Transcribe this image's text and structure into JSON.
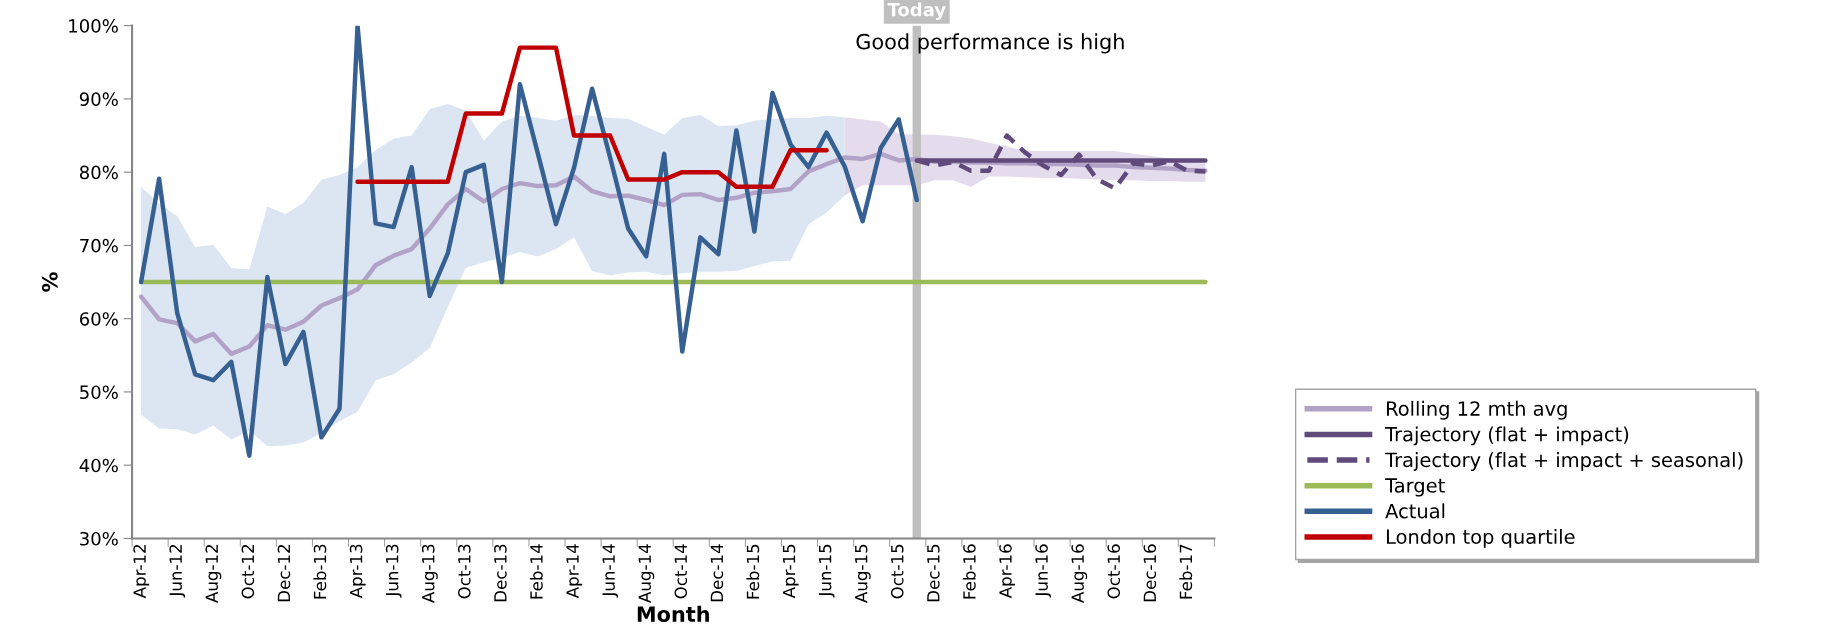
{
  "chart_data": {
    "type": "line",
    "xlabel": "Month",
    "ylabel": "%",
    "categories": [
      "Apr-12",
      null,
      "Jun-12",
      null,
      "Aug-12",
      null,
      "Oct-12",
      null,
      "Dec-12",
      null,
      "Feb-13",
      null,
      "Apr-13",
      null,
      "Jun-13",
      null,
      "Aug-13",
      null,
      "Oct-13",
      null,
      "Dec-13",
      null,
      "Feb-14",
      null,
      "Apr-14",
      null,
      "Jun-14",
      null,
      "Aug-14",
      null,
      "Oct-14",
      null,
      "Dec-14",
      null,
      "Feb-15",
      null,
      "Apr-15",
      null,
      "Jun-15",
      null,
      "Aug-15",
      null,
      "Oct-15",
      null,
      "Dec-15",
      null,
      "Feb-16",
      null,
      "Apr-16",
      null,
      "Jun-16",
      null,
      "Aug-16",
      null,
      "Oct-16",
      null,
      "Dec-16",
      null,
      "Feb-17",
      null
    ],
    "ylim": [
      30,
      100
    ],
    "yticks": [
      {
        "value": 30,
        "label": "30%"
      },
      {
        "value": 40,
        "label": "40%"
      },
      {
        "value": 50,
        "label": "50%"
      },
      {
        "value": 60,
        "label": "60%"
      },
      {
        "value": 70,
        "label": "70%"
      },
      {
        "value": 80,
        "label": "80%"
      },
      {
        "value": 90,
        "label": "90%"
      },
      {
        "value": 100,
        "label": "100%"
      }
    ],
    "legend": "right",
    "annotations": [
      "Today",
      "Good performance is high"
    ],
    "series": [
      {
        "name": "Rolling 12 mth avg",
        "color": "#b3a2c7",
        "line_style": "solid",
        "values": [
          63.0,
          59.9,
          59.4,
          56.9,
          57.9,
          55.2,
          56.2,
          59.1,
          58.5,
          59.6,
          61.8,
          62.8,
          64.0,
          67.3,
          68.6,
          69.5,
          72.3,
          75.6,
          77.7,
          76.0,
          77.7,
          78.5,
          78.1,
          78.2,
          79.4,
          77.4,
          76.7,
          76.8,
          76.2,
          75.5,
          76.9,
          77.0,
          76.2,
          76.5,
          77.2,
          77.4,
          77.7,
          80.1,
          81.1,
          82.0,
          81.8,
          82.5,
          81.6,
          81.8,
          81.4,
          81.4,
          81.3,
          81.3,
          81.2,
          81.2,
          81.1,
          81.1,
          81.0,
          80.9,
          80.9,
          80.7,
          80.6,
          80.5,
          80.3,
          80.2
        ]
      },
      {
        "color": "#dce6f2",
        "values": [
          null,
          null,
          null,
          null,
          null,
          null,
          null,
          null,
          null,
          null,
          null,
          null,
          null,
          null,
          null,
          null,
          null,
          null,
          null,
          null,
          null,
          null,
          null,
          null,
          null,
          null,
          null,
          null,
          null,
          null,
          null,
          null,
          null,
          null,
          null,
          null,
          null,
          null,
          null,
          null,
          null,
          null,
          null,
          null,
          null,
          null,
          null,
          null,
          null,
          null,
          null,
          null,
          null,
          null,
          null,
          null,
          null,
          null,
          null,
          null
        ],
        "upper": [
          78.0,
          75.7,
          74.0,
          69.8,
          70.1,
          66.9,
          66.7,
          75.3,
          74.3,
          75.8,
          79.0,
          79.6,
          80.7,
          83.0,
          84.6,
          85.0,
          88.6,
          89.3,
          88.4,
          84.3,
          86.9,
          87.7,
          87.4,
          87.0,
          87.8,
          87.7,
          87.4,
          87.3,
          86.2,
          85.1,
          87.4,
          87.8,
          86.3,
          86.4,
          87.0,
          87.3,
          87.4,
          87.4,
          87.7,
          87.5,
          null,
          null,
          null,
          null,
          null,
          null,
          null,
          null,
          null,
          null,
          null,
          null,
          null,
          null,
          null,
          null,
          null,
          null,
          null,
          null
        ],
        "lower": [
          46.9,
          45.0,
          44.9,
          44.2,
          45.4,
          43.5,
          44.7,
          42.6,
          42.7,
          43.1,
          44.4,
          46.0,
          47.3,
          51.6,
          52.4,
          54.0,
          56.0,
          61.6,
          66.9,
          67.7,
          68.3,
          69.1,
          68.5,
          69.5,
          71.1,
          66.5,
          65.9,
          66.3,
          66.4,
          65.9,
          66.2,
          66.4,
          66.4,
          66.5,
          67.2,
          67.8,
          67.9,
          72.9,
          74.5,
          76.8,
          null,
          null,
          null,
          null,
          null,
          null,
          null,
          null,
          null,
          null,
          null,
          null,
          null,
          null,
          null,
          null,
          null,
          null,
          null,
          null
        ]
      },
      {
        "name": "Trajectory (flat + impact)",
        "color": "#604a7b",
        "line_style": "solid",
        "values": [
          null,
          null,
          null,
          null,
          null,
          null,
          null,
          null,
          null,
          null,
          null,
          null,
          null,
          null,
          null,
          null,
          null,
          null,
          null,
          null,
          null,
          null,
          null,
          null,
          null,
          null,
          null,
          null,
          null,
          null,
          null,
          null,
          null,
          null,
          null,
          null,
          null,
          null,
          null,
          null,
          null,
          null,
          null,
          81.6,
          81.6,
          81.6,
          81.6,
          81.6,
          81.6,
          81.6,
          81.6,
          81.6,
          81.6,
          81.6,
          81.6,
          81.6,
          81.6,
          81.6,
          81.6,
          81.6
        ]
      },
      {
        "name": "Trajectory (flat + impact + seasonal)",
        "color": "#604a7b",
        "line_style": "dashed",
        "values": [
          null,
          null,
          null,
          null,
          null,
          null,
          null,
          null,
          null,
          null,
          null,
          null,
          null,
          null,
          null,
          null,
          null,
          null,
          null,
          null,
          null,
          null,
          null,
          null,
          null,
          null,
          null,
          null,
          null,
          null,
          null,
          null,
          null,
          null,
          null,
          null,
          null,
          null,
          null,
          null,
          null,
          null,
          null,
          81.6,
          80.9,
          81.4,
          80.2,
          80.2,
          85.0,
          82.7,
          80.9,
          79.6,
          82.4,
          79.0,
          77.8,
          81.2,
          80.9,
          81.5,
          80.2,
          80.1
        ]
      },
      {
        "name": "Target",
        "color": "#9bbb59",
        "line_style": "solid",
        "values": [
          65,
          65,
          65,
          65,
          65,
          65,
          65,
          65,
          65,
          65,
          65,
          65,
          65,
          65,
          65,
          65,
          65,
          65,
          65,
          65,
          65,
          65,
          65,
          65,
          65,
          65,
          65,
          65,
          65,
          65,
          65,
          65,
          65,
          65,
          65,
          65,
          65,
          65,
          65,
          65,
          65,
          65,
          65,
          65,
          65,
          65,
          65,
          65,
          65,
          65,
          65,
          65,
          65,
          65,
          65,
          65,
          65,
          65,
          65,
          65
        ]
      },
      {
        "name": "Actual",
        "color": "#376092",
        "line_style": "solid",
        "values": [
          65.0,
          79.1,
          60.8,
          52.4,
          51.6,
          54.1,
          41.3,
          65.7,
          53.8,
          58.2,
          43.8,
          47.7,
          100,
          73.0,
          72.5,
          80.7,
          63.1,
          68.9,
          80.0,
          81.0,
          65.0,
          92.0,
          82.5,
          72.9,
          80.6,
          91.4,
          82.0,
          72.3,
          68.5,
          82.5,
          55.5,
          71.1,
          68.8,
          85.7,
          71.9,
          90.8,
          83.8,
          80.7,
          85.4,
          80.8,
          73.3,
          83.3,
          87.2,
          76.2,
          null,
          null,
          null,
          null,
          null,
          null,
          null,
          null,
          null,
          null,
          null,
          null,
          null,
          null,
          null,
          null
        ]
      },
      {
        "name": "London top quartile",
        "color": "#c00000",
        "line_style": "solid",
        "values": [
          null,
          null,
          null,
          null,
          null,
          null,
          null,
          null,
          null,
          null,
          null,
          null,
          78.7,
          78.7,
          78.7,
          78.7,
          78.7,
          78.7,
          88,
          88,
          88,
          97,
          97,
          97,
          85,
          85,
          85,
          79,
          79,
          79,
          80,
          80,
          80,
          78,
          78,
          78,
          83,
          83,
          83,
          null,
          null,
          null,
          null,
          null,
          null,
          null,
          null,
          null,
          null,
          null,
          null,
          null,
          null,
          null,
          null,
          null,
          null,
          null,
          null,
          null
        ]
      },
      {
        "color": "#e4dcec",
        "values": [
          null,
          null,
          null,
          null,
          null,
          null,
          null,
          null,
          null,
          null,
          null,
          null,
          null,
          null,
          null,
          null,
          null,
          null,
          null,
          null,
          null,
          null,
          null,
          null,
          null,
          null,
          null,
          null,
          null,
          null,
          null,
          null,
          null,
          null,
          null,
          null,
          null,
          null,
          null,
          null,
          null,
          null,
          null,
          null,
          null,
          null,
          null,
          null,
          null,
          null,
          null,
          null,
          null,
          null,
          null,
          null,
          null,
          null,
          null,
          null
        ],
        "upper": [
          null,
          null,
          null,
          null,
          null,
          null,
          null,
          null,
          null,
          null,
          null,
          null,
          null,
          null,
          null,
          null,
          null,
          null,
          null,
          null,
          null,
          null,
          null,
          null,
          null,
          null,
          null,
          null,
          null,
          null,
          null,
          null,
          null,
          null,
          null,
          null,
          null,
          null,
          null,
          87.5,
          87.2,
          86.9,
          85.2,
          85.1,
          85.1,
          84.9,
          84.6,
          84.0,
          83.5,
          82.9,
          82.9,
          82.9,
          82.9,
          82.9,
          82.9,
          82.5,
          82.2,
          81.9,
          81.5,
          81.2
        ],
        "lower": [
          null,
          null,
          null,
          null,
          null,
          null,
          null,
          null,
          null,
          null,
          null,
          null,
          null,
          null,
          null,
          null,
          null,
          null,
          null,
          null,
          null,
          null,
          null,
          null,
          null,
          null,
          null,
          null,
          null,
          null,
          null,
          null,
          null,
          null,
          null,
          null,
          null,
          null,
          null,
          76.8,
          78.2,
          78.2,
          78.2,
          78.2,
          78.9,
          78.9,
          78.0,
          79.4,
          79.4,
          79.3,
          79.2,
          79.2,
          79.1,
          79.0,
          78.9,
          78.9,
          78.8,
          78.8,
          78.7,
          78.7
        ]
      }
    ]
  }
}
